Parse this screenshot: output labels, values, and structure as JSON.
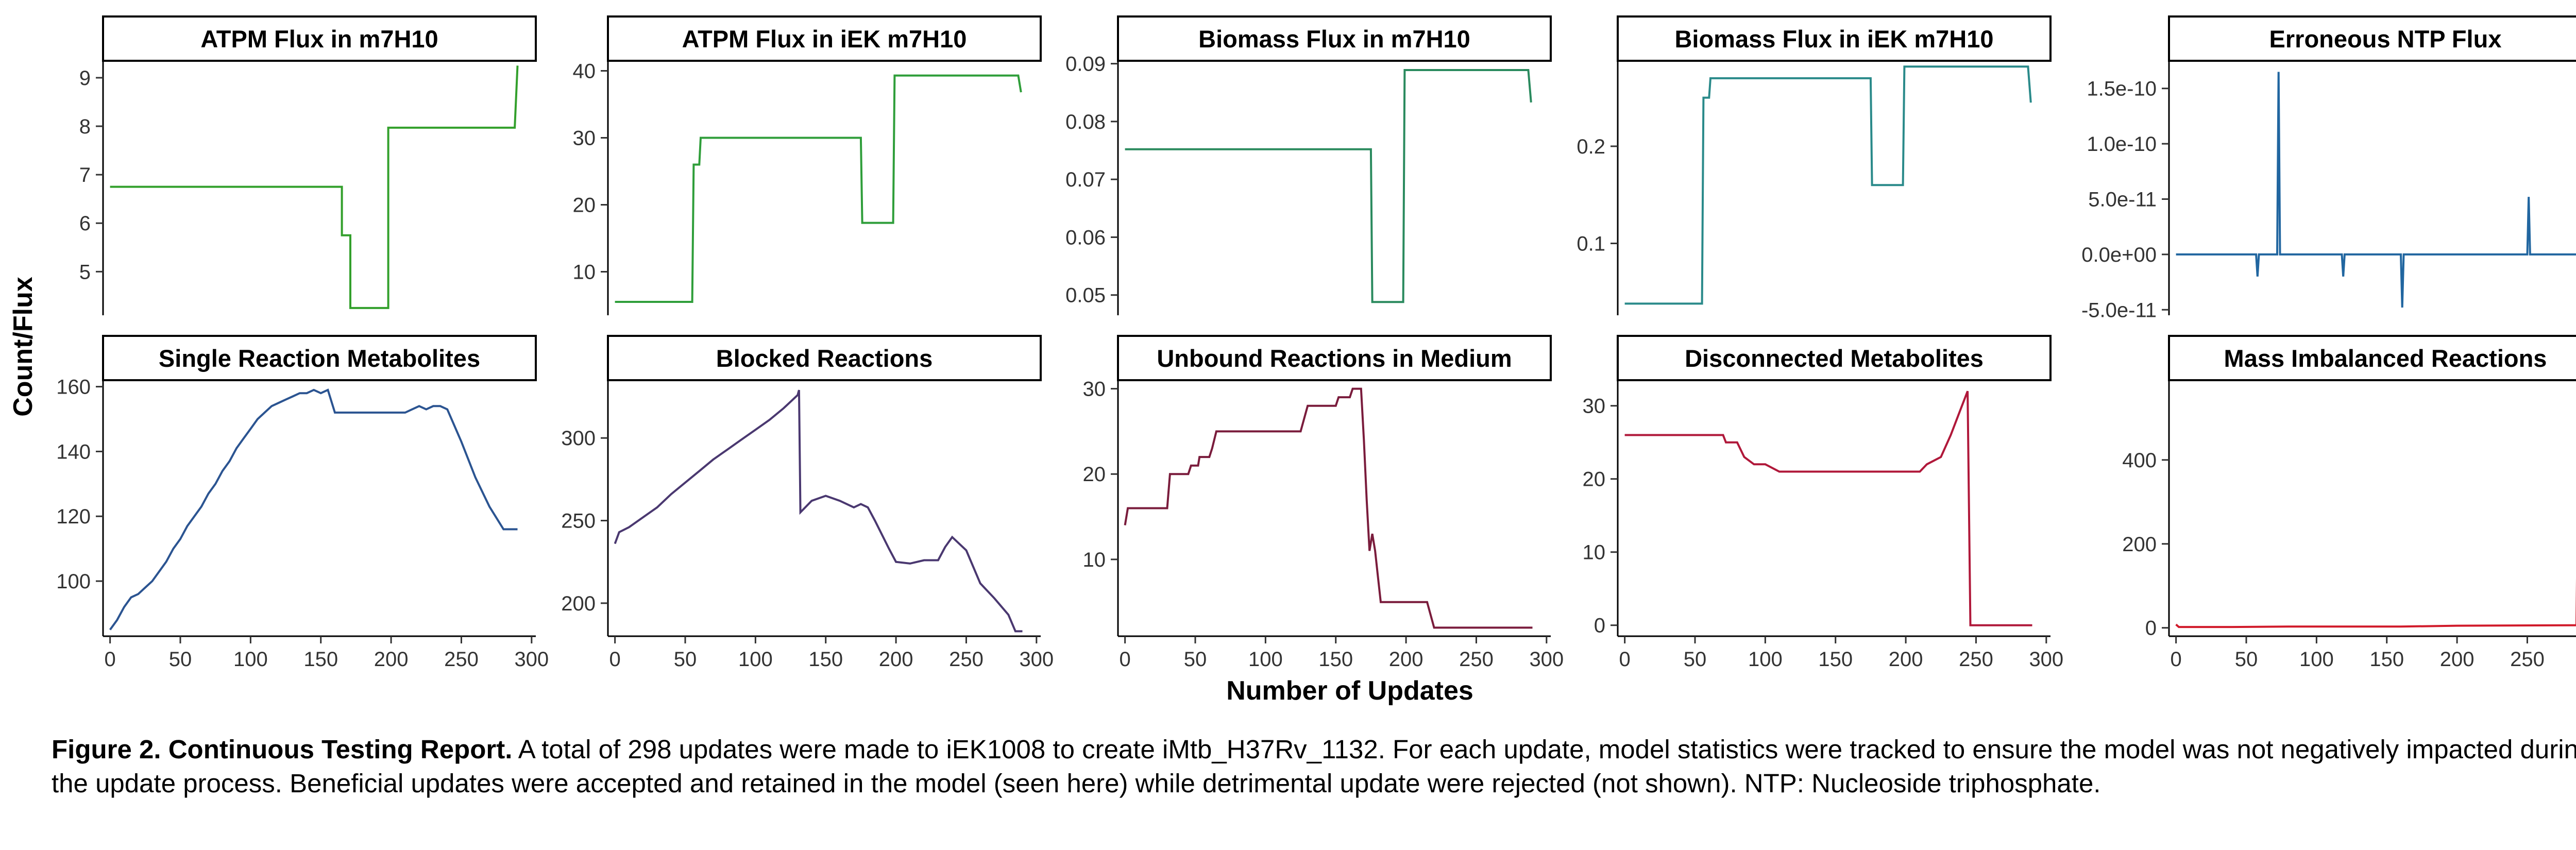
{
  "figure": {
    "shared_ylabel": "Count/Flux",
    "shared_xlabel": "Number of Updates",
    "x_ticks": [
      0,
      50,
      100,
      150,
      200,
      250,
      300
    ]
  },
  "caption": {
    "title": "Figure 2. Continuous Testing Report.",
    "text": "A total of 298 updates were made to iEK1008 to create iMtb_H37Rv_1132. For each update, model statistics were tracked to ensure the model was not negatively impacted during the update process. Beneficial updates were accepted and retained in the model (seen here) while detrimental update were rejected (not shown). NTP: Nucleoside triphosphate."
  },
  "chart_data": [
    {
      "type": "line",
      "title": "ATPM Flux in m7H10",
      "color": "#33a02c",
      "xlim": [
        -5,
        303
      ],
      "ylim": [
        4.1,
        9.35
      ],
      "yticks": [
        5,
        6,
        7,
        8,
        9
      ],
      "ytick_labels": [
        "5",
        "6",
        "7",
        "8",
        "9"
      ],
      "x_ticks_visible": false,
      "step": true,
      "points": [
        [
          0,
          6.75
        ],
        [
          165,
          6.75
        ],
        [
          165,
          5.75
        ],
        [
          171,
          5.75
        ],
        [
          171,
          4.25
        ],
        [
          175,
          4.25
        ],
        [
          175,
          4.25
        ],
        [
          198,
          4.25
        ],
        [
          198,
          7.97
        ],
        [
          288,
          7.97
        ],
        [
          290,
          9.25
        ]
      ]
    },
    {
      "type": "line",
      "title": "ATPM Flux in iEK m7H10",
      "color": "#2f9e3a",
      "xlim": [
        -5,
        303
      ],
      "ylim": [
        3.5,
        41.5
      ],
      "yticks": [
        10,
        20,
        30,
        40
      ],
      "ytick_labels": [
        "10",
        "20",
        "30",
        "40"
      ],
      "x_ticks_visible": false,
      "points": [
        [
          0,
          5.5
        ],
        [
          55,
          5.5
        ],
        [
          56,
          26
        ],
        [
          60,
          26
        ],
        [
          61,
          30
        ],
        [
          175,
          30
        ],
        [
          176,
          17.3
        ],
        [
          198,
          17.3
        ],
        [
          199,
          39.3
        ],
        [
          287,
          39.3
        ],
        [
          289,
          36.8
        ]
      ]
    },
    {
      "type": "line",
      "title": "Biomass Flux in m7H10",
      "color": "#2a8a5e",
      "xlim": [
        -5,
        303
      ],
      "ylim": [
        0.0465,
        0.0905
      ],
      "yticks": [
        0.05,
        0.06,
        0.07,
        0.08,
        0.09
      ],
      "ytick_labels": [
        "0.05",
        "0.06",
        "0.07",
        "0.08",
        "0.09"
      ],
      "x_ticks_visible": false,
      "points": [
        [
          0,
          0.0752
        ],
        [
          175,
          0.0752
        ],
        [
          176,
          0.0488
        ],
        [
          198,
          0.0488
        ],
        [
          199,
          0.0889
        ],
        [
          287,
          0.0889
        ],
        [
          289,
          0.0833
        ]
      ]
    },
    {
      "type": "line",
      "title": "Biomass Flux in iEK m7H10",
      "color": "#2a8a8a",
      "xlim": [
        -5,
        303
      ],
      "ylim": [
        0.026,
        0.288
      ],
      "yticks": [
        0.1,
        0.2
      ],
      "ytick_labels": [
        "0.1",
        "0.2"
      ],
      "x_ticks_visible": false,
      "points": [
        [
          0,
          0.038
        ],
        [
          55,
          0.038
        ],
        [
          56,
          0.25
        ],
        [
          60,
          0.25
        ],
        [
          61,
          0.27
        ],
        [
          175,
          0.27
        ],
        [
          176,
          0.16
        ],
        [
          198,
          0.16
        ],
        [
          199,
          0.282
        ],
        [
          287,
          0.282
        ],
        [
          289,
          0.245
        ]
      ]
    },
    {
      "type": "line",
      "title": "Erroneous NTP Flux",
      "color": "#2166a0",
      "xlim": [
        -5,
        303
      ],
      "ylim": [
        -5.5e-11,
        1.75e-10
      ],
      "yticks": [
        -5e-11,
        0,
        5e-11,
        1e-10,
        1.5e-10
      ],
      "ytick_labels": [
        "-5.0e-11",
        "0.0e+00",
        "5.0e-11",
        "1.0e-10",
        "1.5e-10"
      ],
      "x_ticks_visible": false,
      "points": [
        [
          0,
          0
        ],
        [
          57,
          0
        ],
        [
          58,
          -2e-11
        ],
        [
          59,
          0
        ],
        [
          72,
          0
        ],
        [
          73,
          1.65e-10
        ],
        [
          74,
          0
        ],
        [
          118,
          0
        ],
        [
          119,
          -2e-11
        ],
        [
          120,
          0
        ],
        [
          160,
          0
        ],
        [
          161,
          -4.8e-11
        ],
        [
          162,
          0
        ],
        [
          250,
          0
        ],
        [
          251,
          5.2e-11
        ],
        [
          252,
          0
        ],
        [
          290,
          0
        ]
      ]
    },
    {
      "type": "line",
      "title": "Single Reaction Metabolites",
      "color": "#2b5491",
      "xlim": [
        -5,
        303
      ],
      "ylim": [
        83,
        162
      ],
      "yticks": [
        100,
        120,
        140,
        160
      ],
      "ytick_labels": [
        "100",
        "120",
        "140",
        "160"
      ],
      "x_ticks_visible": true,
      "points": [
        [
          0,
          85
        ],
        [
          5,
          88
        ],
        [
          10,
          92
        ],
        [
          15,
          95
        ],
        [
          20,
          96
        ],
        [
          25,
          98
        ],
        [
          30,
          100
        ],
        [
          35,
          103
        ],
        [
          40,
          106
        ],
        [
          45,
          110
        ],
        [
          50,
          113
        ],
        [
          55,
          117
        ],
        [
          60,
          120
        ],
        [
          65,
          123
        ],
        [
          70,
          127
        ],
        [
          75,
          130
        ],
        [
          80,
          134
        ],
        [
          85,
          137
        ],
        [
          90,
          141
        ],
        [
          95,
          144
        ],
        [
          100,
          147
        ],
        [
          105,
          150
        ],
        [
          110,
          152
        ],
        [
          115,
          154
        ],
        [
          120,
          155
        ],
        [
          125,
          156
        ],
        [
          130,
          157
        ],
        [
          135,
          158
        ],
        [
          140,
          158
        ],
        [
          145,
          159
        ],
        [
          150,
          158
        ],
        [
          155,
          159
        ],
        [
          160,
          152
        ],
        [
          200,
          152
        ],
        [
          210,
          152
        ],
        [
          215,
          153
        ],
        [
          220,
          154
        ],
        [
          225,
          153
        ],
        [
          230,
          154
        ],
        [
          235,
          154
        ],
        [
          240,
          153
        ],
        [
          250,
          143
        ],
        [
          260,
          132
        ],
        [
          270,
          123
        ],
        [
          280,
          116
        ],
        [
          290,
          116
        ]
      ]
    },
    {
      "type": "line",
      "title": "Blocked Reactions",
      "color": "#4a3870",
      "xlim": [
        -5,
        303
      ],
      "ylim": [
        180,
        335
      ],
      "yticks": [
        200,
        250,
        300
      ],
      "ytick_labels": [
        "200",
        "250",
        "300"
      ],
      "x_ticks_visible": true,
      "points": [
        [
          0,
          236
        ],
        [
          3,
          243
        ],
        [
          10,
          246
        ],
        [
          20,
          252
        ],
        [
          30,
          258
        ],
        [
          40,
          266
        ],
        [
          50,
          273
        ],
        [
          60,
          280
        ],
        [
          70,
          287
        ],
        [
          80,
          293
        ],
        [
          90,
          299
        ],
        [
          100,
          305
        ],
        [
          110,
          311
        ],
        [
          120,
          318
        ],
        [
          130,
          326
        ],
        [
          131,
          329
        ],
        [
          132,
          255
        ],
        [
          140,
          262
        ],
        [
          150,
          265
        ],
        [
          160,
          262
        ],
        [
          170,
          258
        ],
        [
          175,
          260
        ],
        [
          180,
          258
        ],
        [
          185,
          250
        ],
        [
          195,
          233
        ],
        [
          200,
          225
        ],
        [
          210,
          224
        ],
        [
          220,
          226
        ],
        [
          230,
          226
        ],
        [
          235,
          234
        ],
        [
          240,
          240
        ],
        [
          250,
          232
        ],
        [
          260,
          212
        ],
        [
          270,
          203
        ],
        [
          280,
          193
        ],
        [
          285,
          183
        ],
        [
          290,
          183
        ]
      ]
    },
    {
      "type": "line",
      "title": "Unbound Reactions in Medium",
      "color": "#7a1c3c",
      "xlim": [
        -5,
        303
      ],
      "ylim": [
        1,
        31
      ],
      "yticks": [
        10,
        20,
        30
      ],
      "ytick_labels": [
        "10",
        "20",
        "30"
      ],
      "x_ticks_visible": true,
      "points": [
        [
          0,
          14
        ],
        [
          2,
          16
        ],
        [
          30,
          16
        ],
        [
          32,
          20
        ],
        [
          45,
          20
        ],
        [
          47,
          21
        ],
        [
          52,
          21
        ],
        [
          53,
          22
        ],
        [
          60,
          22
        ],
        [
          62,
          23
        ],
        [
          65,
          25
        ],
        [
          85,
          25
        ],
        [
          90,
          25
        ],
        [
          110,
          25
        ],
        [
          125,
          25
        ],
        [
          130,
          28
        ],
        [
          150,
          28
        ],
        [
          152,
          29
        ],
        [
          160,
          29
        ],
        [
          162,
          30
        ],
        [
          168,
          30
        ],
        [
          170,
          24
        ],
        [
          172,
          17
        ],
        [
          174,
          11
        ],
        [
          176,
          13
        ],
        [
          178,
          11
        ],
        [
          180,
          8
        ],
        [
          182,
          5
        ],
        [
          200,
          5
        ],
        [
          205,
          5
        ],
        [
          215,
          5
        ],
        [
          220,
          2
        ],
        [
          250,
          2
        ],
        [
          290,
          2
        ]
      ]
    },
    {
      "type": "line",
      "title": "Disconnected Metabolites",
      "color": "#b0183a",
      "xlim": [
        -5,
        303
      ],
      "ylim": [
        -1.5,
        33.5
      ],
      "yticks": [
        0,
        10,
        20,
        30
      ],
      "ytick_labels": [
        "0",
        "10",
        "20",
        "30"
      ],
      "x_ticks_visible": true,
      "points": [
        [
          0,
          26
        ],
        [
          70,
          26
        ],
        [
          72,
          25
        ],
        [
          80,
          25
        ],
        [
          85,
          23
        ],
        [
          92,
          22
        ],
        [
          100,
          22
        ],
        [
          110,
          21
        ],
        [
          150,
          21
        ],
        [
          200,
          21
        ],
        [
          210,
          21
        ],
        [
          215,
          22
        ],
        [
          225,
          23
        ],
        [
          232,
          26
        ],
        [
          238,
          29
        ],
        [
          244,
          32
        ],
        [
          246,
          0
        ],
        [
          290,
          0
        ]
      ]
    },
    {
      "type": "line",
      "title": "Mass Imbalanced Reactions",
      "color": "#d11a2a",
      "xlim": [
        -5,
        303
      ],
      "ylim": [
        -20,
        590
      ],
      "yticks": [
        0,
        200,
        400
      ],
      "ytick_labels": [
        "0",
        "200",
        "400"
      ],
      "x_ticks_visible": true,
      "points": [
        [
          0,
          8
        ],
        [
          2,
          2
        ],
        [
          40,
          2
        ],
        [
          80,
          3
        ],
        [
          160,
          3
        ],
        [
          200,
          5
        ],
        [
          280,
          6
        ],
        [
          285,
          6
        ],
        [
          287,
          570
        ],
        [
          289,
          6
        ],
        [
          290,
          6
        ]
      ]
    }
  ]
}
